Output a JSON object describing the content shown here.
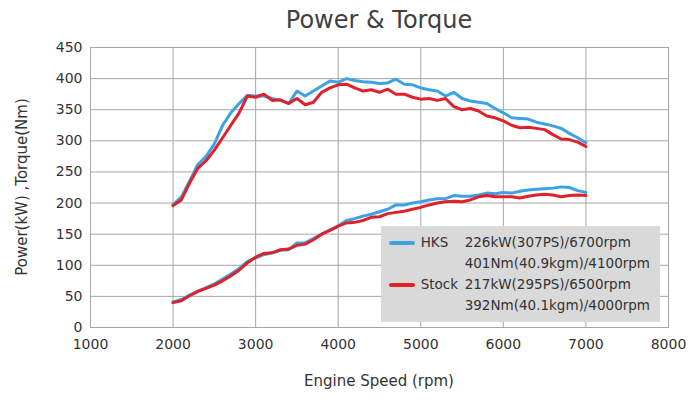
{
  "chart_data": {
    "type": "line",
    "title": "Power & Torque",
    "x_label": "Engine Speed (rpm)",
    "y_label": "Power(kW) ,Torque(Nm)",
    "x": [
      2000,
      2100,
      2200,
      2300,
      2400,
      2500,
      2600,
      2700,
      2800,
      2900,
      3000,
      3100,
      3200,
      3300,
      3400,
      3500,
      3600,
      3700,
      3800,
      3900,
      4000,
      4100,
      4200,
      4300,
      4400,
      4500,
      4600,
      4700,
      4800,
      4900,
      5000,
      5100,
      5200,
      5300,
      5400,
      5500,
      5600,
      5700,
      5800,
      5900,
      6000,
      6100,
      6200,
      6300,
      6400,
      6500,
      6600,
      6700,
      6800,
      6900,
      7000
    ],
    "series": [
      {
        "name": "HKS",
        "color": "#3ba3e3",
        "values": [
          197,
          210,
          235,
          262,
          275,
          295,
          325,
          345,
          360,
          373,
          372,
          372,
          368,
          365,
          360,
          380,
          372,
          380,
          388,
          396,
          394,
          400,
          397,
          395,
          394,
          392,
          393,
          399,
          391,
          390,
          385,
          382,
          380,
          372,
          378,
          368,
          364,
          362,
          360,
          352,
          345,
          337,
          336,
          335,
          330,
          327,
          324,
          320,
          312,
          305,
          297
        ]
      },
      {
        "name": "Stock",
        "color": "#e0202a",
        "values": [
          196,
          205,
          232,
          256,
          268,
          285,
          305,
          325,
          345,
          372,
          370,
          375,
          365,
          366,
          360,
          368,
          358,
          362,
          378,
          385,
          390,
          391,
          385,
          380,
          382,
          378,
          383,
          375,
          375,
          370,
          367,
          368,
          365,
          368,
          355,
          350,
          352,
          348,
          340,
          337,
          332,
          325,
          321,
          322,
          320,
          318,
          310,
          303,
          302,
          298,
          291
        ]
      },
      {
        "name": "HKS",
        "color": "#3ba3e3",
        "values": [
          41,
          45,
          52,
          58,
          64,
          70,
          78,
          86,
          95,
          106,
          112,
          117,
          120,
          124,
          125,
          136,
          136,
          143,
          150,
          157,
          163,
          172,
          175,
          179,
          182,
          186,
          190,
          197,
          197,
          200,
          202,
          205,
          207,
          207,
          212,
          211,
          211,
          213,
          216,
          215,
          217,
          216,
          219,
          221,
          222,
          223,
          224,
          226,
          225,
          220,
          217
        ]
      },
      {
        "name": "Stock",
        "color": "#e0202a",
        "values": [
          40,
          43,
          51,
          58,
          63,
          68,
          75,
          83,
          92,
          104,
          113,
          119,
          120,
          125,
          126,
          132,
          134,
          141,
          150,
          156,
          163,
          168,
          169,
          172,
          177,
          178,
          183,
          185,
          187,
          190,
          193,
          197,
          200,
          202,
          203,
          202,
          205,
          210,
          212,
          210,
          210,
          210,
          208,
          211,
          213,
          214,
          213,
          210,
          212,
          213,
          212
        ]
      }
    ],
    "annotations": [
      {
        "series": "HKS",
        "lines": [
          "226kW(307PS)/6700rpm",
          "401Nm(40.9kgm)/4100rpm"
        ]
      },
      {
        "series": "Stock",
        "lines": [
          "217kW(295PS)/6500rpm",
          "392Nm(40.1kgm)/4000rpm"
        ]
      }
    ],
    "xlim": [
      1000,
      8000
    ],
    "xticks": [
      1000,
      2000,
      3000,
      4000,
      5000,
      6000,
      7000,
      8000
    ],
    "ylim": [
      0,
      450
    ],
    "yticks": [
      0,
      50,
      100,
      150,
      200,
      250,
      300,
      350,
      400,
      450
    ],
    "grid": true,
    "legend": "lower right"
  }
}
